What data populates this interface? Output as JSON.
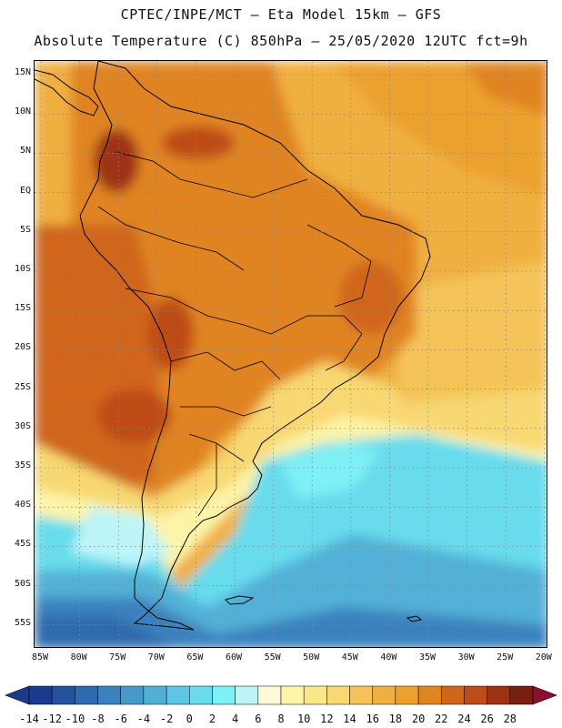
{
  "header": {
    "line1": "CPTEC/INPE/MCT –  Eta Model 15km – GFS",
    "line2": "Absolute Temperature (C) 850hPa – 25/05/2020 12UTC fct=9h"
  },
  "map": {
    "lat_labels": [
      "15N",
      "10N",
      "5N",
      "EQ",
      "5S",
      "10S",
      "15S",
      "20S",
      "25S",
      "30S",
      "35S",
      "40S",
      "45S",
      "50S",
      "55S"
    ],
    "lon_labels": [
      "85W",
      "80W",
      "75W",
      "70W",
      "65W",
      "60W",
      "55W",
      "50W",
      "45W",
      "40W",
      "35W",
      "30W",
      "25W",
      "20W"
    ],
    "gridlines": true
  },
  "colorbar": {
    "labels": [
      "-14",
      "-12",
      "-10",
      "-8",
      "-6",
      "-4",
      "-2",
      "0",
      "2",
      "4",
      "6",
      "8",
      "10",
      "12",
      "14",
      "16",
      "18",
      "20",
      "22",
      "24",
      "26",
      "28"
    ],
    "colors": [
      "#1a3a8c",
      "#24529e",
      "#2e6aae",
      "#3b82bd",
      "#4699c9",
      "#52b0d6",
      "#5ec6e2",
      "#68dced",
      "#7ff0f6",
      "#bdf4f8",
      "#fdf8d8",
      "#fdf4a8",
      "#fbe78a",
      "#f8d872",
      "#f4c45a",
      "#f0b040",
      "#eca12e",
      "#e08420",
      "#cf661c",
      "#bd4c18",
      "#9e3216",
      "#7a2012",
      "#8a1030"
    ]
  }
}
